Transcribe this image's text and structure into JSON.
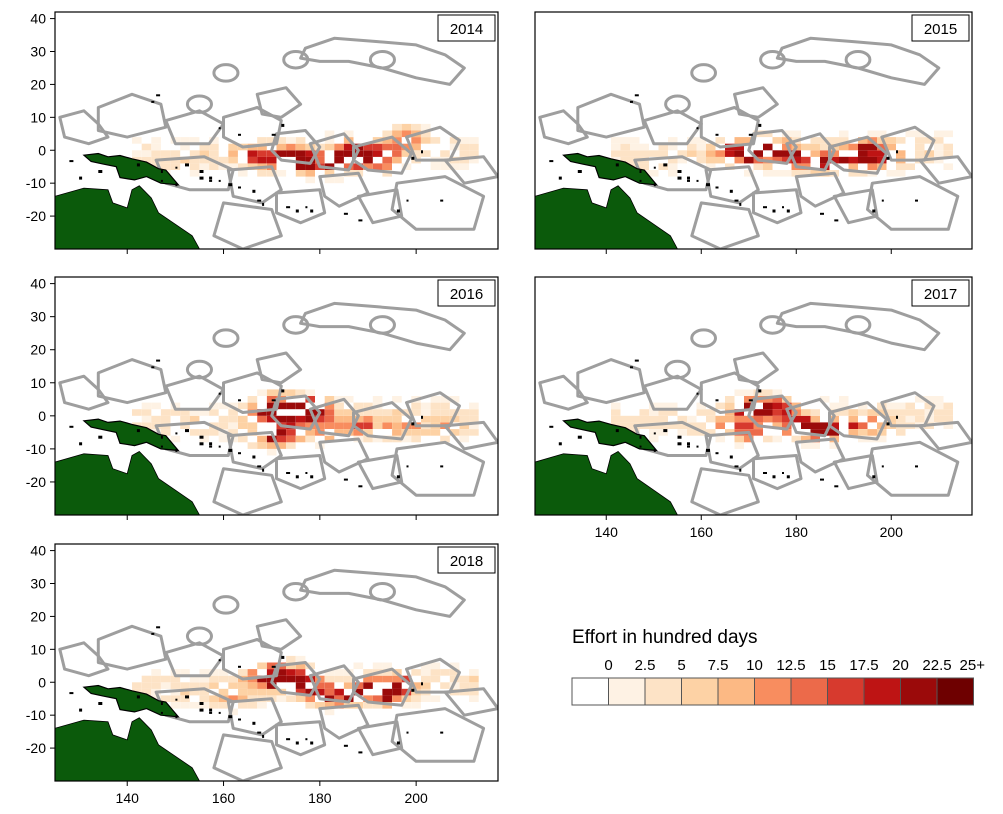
{
  "panels": [
    {
      "year": "2014",
      "hotspots": [
        [
          172,
          -3,
          1.0
        ],
        [
          176,
          -4,
          0.8
        ],
        [
          180,
          -6,
          0.9
        ],
        [
          185,
          -3,
          1.0
        ],
        [
          187,
          -1,
          0.7
        ],
        [
          190,
          -5,
          0.8
        ],
        [
          193,
          -1,
          0.6
        ],
        [
          197,
          3,
          0.7
        ],
        [
          165,
          -2,
          0.5
        ],
        [
          168,
          -4,
          0.5
        ]
      ]
    },
    {
      "year": "2015",
      "hotspots": [
        [
          166,
          -1,
          0.9
        ],
        [
          170,
          -2,
          1.0
        ],
        [
          174,
          0,
          0.8
        ],
        [
          178,
          -3,
          0.8
        ],
        [
          183,
          -5,
          0.7
        ],
        [
          188,
          -4,
          0.8
        ],
        [
          192,
          -3,
          0.8
        ],
        [
          195,
          -1,
          0.9
        ],
        [
          197,
          -4,
          0.7
        ]
      ]
    },
    {
      "year": "2016",
      "hotspots": [
        [
          168,
          0,
          0.9
        ],
        [
          171,
          3,
          0.8
        ],
        [
          174,
          -1,
          1.0
        ],
        [
          176,
          2,
          0.9
        ],
        [
          179,
          0,
          0.8
        ],
        [
          169,
          -8,
          0.8
        ],
        [
          172,
          -6,
          0.7
        ],
        [
          181,
          -6,
          0.7
        ],
        [
          188,
          -4,
          0.6
        ],
        [
          196,
          -5,
          0.5
        ],
        [
          205,
          -5,
          0.4
        ]
      ]
    },
    {
      "year": "2017",
      "hotspots": [
        [
          169,
          1,
          0.9
        ],
        [
          172,
          2,
          1.0
        ],
        [
          175,
          1,
          0.8
        ],
        [
          178,
          -3,
          0.7
        ],
        [
          181,
          -5,
          0.9
        ],
        [
          185,
          -6,
          0.8
        ],
        [
          189,
          -4,
          0.6
        ],
        [
          170,
          -6,
          0.6
        ],
        [
          165,
          -4,
          0.5
        ],
        [
          195,
          -4,
          0.5
        ]
      ]
    },
    {
      "year": "2018",
      "hotspots": [
        [
          168,
          0,
          1.0
        ],
        [
          171,
          2,
          0.9
        ],
        [
          174,
          0,
          0.9
        ],
        [
          177,
          -3,
          0.7
        ],
        [
          181,
          -6,
          0.8
        ],
        [
          185,
          -5,
          0.7
        ],
        [
          190,
          -3,
          0.8
        ],
        [
          193,
          -5,
          0.9
        ],
        [
          196,
          -2,
          0.8
        ],
        [
          161,
          -6,
          0.4
        ]
      ]
    }
  ],
  "axes": {
    "x_ticks": [
      "140",
      "160",
      "180",
      "200"
    ],
    "y_ticks": [
      "40",
      "30",
      "20",
      "10",
      "0",
      "-10",
      "-20"
    ],
    "xlim": [
      125,
      217
    ],
    "ylim": [
      -30,
      42
    ]
  },
  "legend": {
    "title": "Effort in  hundred days",
    "labels": [
      "0",
      "2.5",
      "5",
      "7.5",
      "10",
      "12.5",
      "15",
      "17.5",
      "20",
      "22.5",
      "25+"
    ],
    "colors": [
      "#ffffff",
      "#fef2e4",
      "#fde3c6",
      "#fdd2a5",
      "#fcb984",
      "#f88d5f",
      "#ec6a4a",
      "#d73a2e",
      "#be1414",
      "#9b0a0a",
      "#6e0000"
    ]
  },
  "colors": {
    "land_green": "#0b5a0b",
    "eez_border": "#9e9e9e",
    "island": "#000000",
    "frame": "#000000"
  }
}
